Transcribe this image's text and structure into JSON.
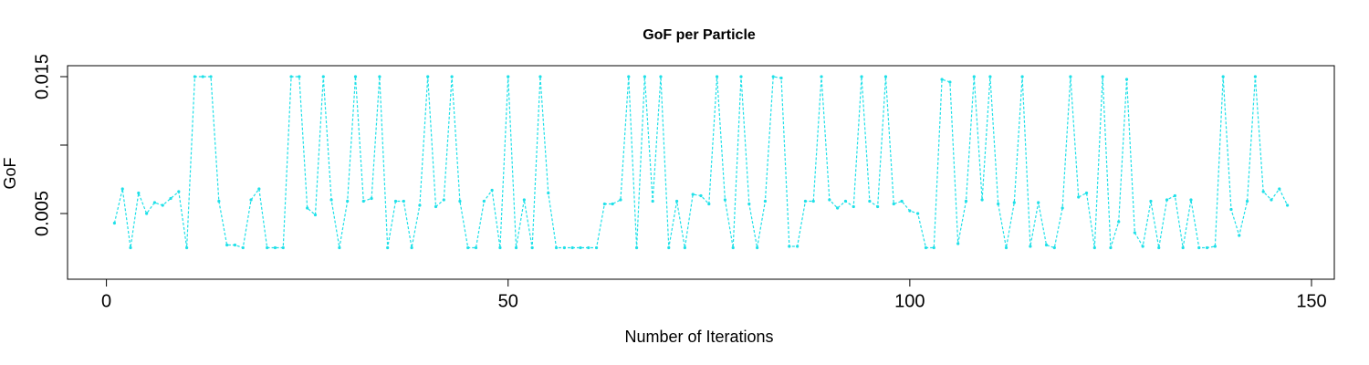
{
  "chart_data": {
    "type": "line",
    "title": "GoF per Particle",
    "x_label": "Number of Iterations",
    "y_label": "GoF",
    "color": "#1fe0e8",
    "x": [
      1,
      2,
      3,
      4,
      5,
      6,
      7,
      8,
      9,
      10,
      11,
      12,
      13,
      14,
      15,
      16,
      17,
      18,
      19,
      20,
      21,
      22,
      23,
      24,
      25,
      26,
      27,
      28,
      29,
      30,
      31,
      32,
      33,
      34,
      35,
      36,
      37,
      38,
      39,
      40,
      41,
      42,
      43,
      44,
      45,
      46,
      47,
      48,
      49,
      50,
      51,
      52,
      53,
      54,
      55,
      56,
      57,
      58,
      59,
      60,
      61,
      62,
      63,
      64,
      65,
      66,
      67,
      68,
      69,
      70,
      71,
      72,
      73,
      74,
      75,
      76,
      77,
      78,
      79,
      80,
      81,
      82,
      83,
      84,
      85,
      86,
      87,
      88,
      89,
      90,
      91,
      92,
      93,
      94,
      95,
      96,
      97,
      98,
      99,
      100,
      101,
      102,
      103,
      104,
      105,
      106,
      107,
      108,
      109,
      110,
      111,
      112,
      113,
      114,
      115,
      116,
      117,
      118,
      119,
      120,
      121,
      122,
      123,
      124,
      125,
      126,
      127,
      128,
      129,
      130,
      131,
      132,
      133,
      134,
      135,
      136,
      137,
      138,
      139,
      140,
      141,
      142,
      143,
      144,
      145,
      146,
      147
    ],
    "values": [
      0.0043,
      0.0068,
      0.0025,
      0.0065,
      0.005,
      0.0058,
      0.0056,
      0.0061,
      0.0066,
      0.0025,
      0.015,
      0.015,
      0.015,
      0.0059,
      0.0027,
      0.0027,
      0.0025,
      0.006,
      0.0068,
      0.0025,
      0.0025,
      0.0025,
      0.015,
      0.015,
      0.0054,
      0.0049,
      0.015,
      0.006,
      0.0025,
      0.0059,
      0.015,
      0.0059,
      0.0061,
      0.015,
      0.0025,
      0.0059,
      0.0059,
      0.0025,
      0.0056,
      0.015,
      0.0055,
      0.006,
      0.015,
      0.0059,
      0.0025,
      0.0025,
      0.0059,
      0.0067,
      0.0025,
      0.015,
      0.0025,
      0.006,
      0.0025,
      0.015,
      0.0065,
      0.0025,
      0.0025,
      0.0025,
      0.0025,
      0.0025,
      0.0025,
      0.0057,
      0.0057,
      0.006,
      0.015,
      0.0025,
      0.015,
      0.0059,
      0.015,
      0.0025,
      0.0059,
      0.0025,
      0.0064,
      0.0063,
      0.0057,
      0.015,
      0.006,
      0.0025,
      0.015,
      0.0057,
      0.0025,
      0.0059,
      0.015,
      0.0149,
      0.0026,
      0.0026,
      0.0059,
      0.0059,
      0.015,
      0.006,
      0.0054,
      0.0059,
      0.0055,
      0.015,
      0.0059,
      0.0055,
      0.015,
      0.0057,
      0.0059,
      0.0052,
      0.005,
      0.0025,
      0.0025,
      0.0148,
      0.0146,
      0.0028,
      0.0059,
      0.015,
      0.006,
      0.015,
      0.0057,
      0.0025,
      0.0058,
      0.015,
      0.0026,
      0.0058,
      0.0027,
      0.0025,
      0.0054,
      0.015,
      0.0062,
      0.0065,
      0.0025,
      0.015,
      0.0025,
      0.0044,
      0.0148,
      0.0036,
      0.0026,
      0.0059,
      0.0025,
      0.006,
      0.0063,
      0.0025,
      0.006,
      0.0025,
      0.0025,
      0.0026,
      0.015,
      0.0053,
      0.0034,
      0.0059,
      0.015,
      0.0066,
      0.006,
      0.0068,
      0.0056
    ],
    "xlim": [
      -4.84,
      152.84
    ],
    "xticks": [
      0,
      50,
      100,
      150
    ],
    "ylim": [
      0.0002,
      0.0158
    ],
    "yticks": [
      0.005,
      {
        "value": 0.01,
        "label": null
      },
      0.015
    ]
  }
}
